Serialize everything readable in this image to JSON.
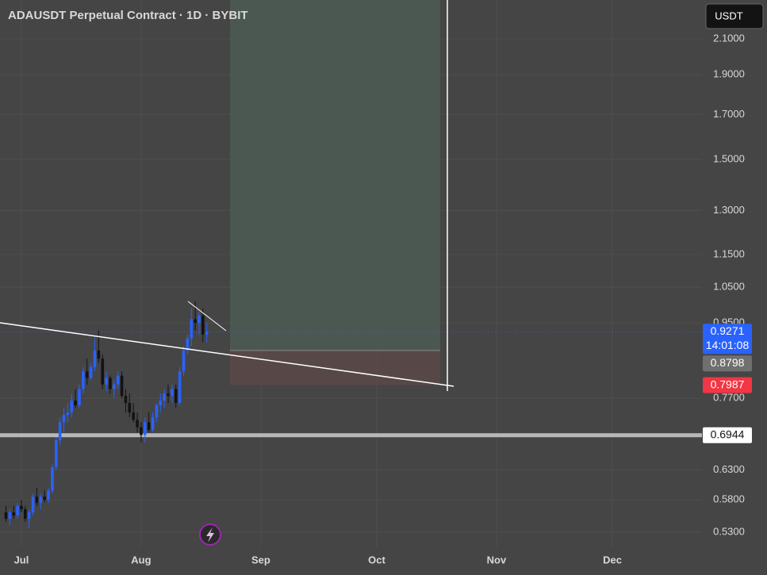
{
  "chart_data": {
    "type": "candlestick",
    "title": "ADAUSDT Perpetual Contract · 1D · BYBIT",
    "currency": "USDT",
    "log_scale": true,
    "grid": true,
    "up_color": "#2962ff",
    "down_color": "#131313",
    "ylim": [
      0.508,
      2.34
    ],
    "yticks": [
      {
        "value": 0.53,
        "label": "0.5300"
      },
      {
        "value": 0.58,
        "label": "0.5800"
      },
      {
        "value": 0.63,
        "label": "0.6300"
      },
      {
        "value": 0.77,
        "label": "0.7700"
      },
      {
        "value": 0.95,
        "label": "0.9500"
      },
      {
        "value": 1.05,
        "label": "1.0500"
      },
      {
        "value": 1.15,
        "label": "1.1500"
      },
      {
        "value": 1.3,
        "label": "1.3000"
      },
      {
        "value": 1.5,
        "label": "1.5000"
      },
      {
        "value": 1.7,
        "label": "1.7000"
      },
      {
        "value": 1.9,
        "label": "1.9000"
      },
      {
        "value": 2.1,
        "label": "2.1000"
      }
    ],
    "xlim": [
      -5.54,
      176.2
    ],
    "xticks": [
      {
        "value": 0,
        "label": "Jul"
      },
      {
        "value": 31,
        "label": "Aug"
      },
      {
        "value": 62,
        "label": "Sep"
      },
      {
        "value": 92,
        "label": "Oct"
      },
      {
        "value": 123,
        "label": "Nov"
      },
      {
        "value": 153,
        "label": "Dec"
      }
    ],
    "candles": {
      "x": [
        -4,
        -3,
        -2,
        -1,
        0,
        1,
        2,
        3,
        4,
        5,
        6,
        7,
        8,
        9,
        10,
        11,
        12,
        13,
        14,
        15,
        16,
        17,
        18,
        19,
        20,
        21,
        22,
        23,
        24,
        25,
        26,
        27,
        28,
        29,
        30,
        31,
        32,
        33,
        34,
        35,
        36,
        37,
        38,
        39,
        40,
        41,
        42,
        43,
        44,
        45,
        46,
        47,
        48
      ],
      "open": [
        0.56,
        0.55,
        0.56,
        0.555,
        0.57,
        0.565,
        0.55,
        0.56,
        0.585,
        0.575,
        0.585,
        0.58,
        0.595,
        0.635,
        0.685,
        0.72,
        0.735,
        0.74,
        0.765,
        0.755,
        0.79,
        0.83,
        0.815,
        0.84,
        0.88,
        0.86,
        0.8,
        0.815,
        0.79,
        0.8,
        0.82,
        0.775,
        0.76,
        0.74,
        0.725,
        0.71,
        0.695,
        0.72,
        0.705,
        0.73,
        0.755,
        0.765,
        0.78,
        0.775,
        0.79,
        0.76,
        0.83,
        0.88,
        0.91,
        0.96,
        0.95,
        0.97,
        0.92
      ],
      "high": [
        0.57,
        0.565,
        0.57,
        0.575,
        0.58,
        0.57,
        0.565,
        0.59,
        0.6,
        0.59,
        0.595,
        0.6,
        0.64,
        0.69,
        0.73,
        0.75,
        0.76,
        0.78,
        0.79,
        0.8,
        0.84,
        0.86,
        0.85,
        0.91,
        0.93,
        0.87,
        0.83,
        0.82,
        0.81,
        0.83,
        0.83,
        0.79,
        0.78,
        0.76,
        0.74,
        0.72,
        0.73,
        0.74,
        0.74,
        0.76,
        0.78,
        0.79,
        0.8,
        0.8,
        0.8,
        0.84,
        0.89,
        0.92,
        0.99,
        1.01,
        0.98,
        0.99,
        0.95
      ],
      "low": [
        0.545,
        0.54,
        0.55,
        0.55,
        0.56,
        0.545,
        0.535,
        0.555,
        0.57,
        0.565,
        0.575,
        0.575,
        0.59,
        0.63,
        0.675,
        0.7,
        0.72,
        0.73,
        0.75,
        0.75,
        0.78,
        0.8,
        0.81,
        0.83,
        0.85,
        0.79,
        0.785,
        0.78,
        0.77,
        0.79,
        0.77,
        0.74,
        0.73,
        0.72,
        0.7,
        0.68,
        0.68,
        0.7,
        0.7,
        0.72,
        0.74,
        0.75,
        0.76,
        0.76,
        0.75,
        0.755,
        0.82,
        0.87,
        0.89,
        0.93,
        0.92,
        0.9,
        0.9
      ],
      "close": [
        0.55,
        0.56,
        0.555,
        0.57,
        0.565,
        0.55,
        0.56,
        0.585,
        0.575,
        0.585,
        0.58,
        0.595,
        0.635,
        0.685,
        0.72,
        0.735,
        0.74,
        0.765,
        0.755,
        0.79,
        0.83,
        0.815,
        0.84,
        0.88,
        0.86,
        0.8,
        0.815,
        0.79,
        0.8,
        0.82,
        0.775,
        0.76,
        0.74,
        0.725,
        0.71,
        0.695,
        0.72,
        0.705,
        0.73,
        0.755,
        0.765,
        0.78,
        0.775,
        0.79,
        0.76,
        0.83,
        0.88,
        0.91,
        0.96,
        0.95,
        0.97,
        0.92,
        0.9271
      ]
    },
    "last_price": {
      "value": 0.9271,
      "countdown": "14:01:08"
    },
    "position": {
      "entry": 0.8798,
      "stop": 0.7987
    },
    "horizontal_level": 0.6944
  }
}
